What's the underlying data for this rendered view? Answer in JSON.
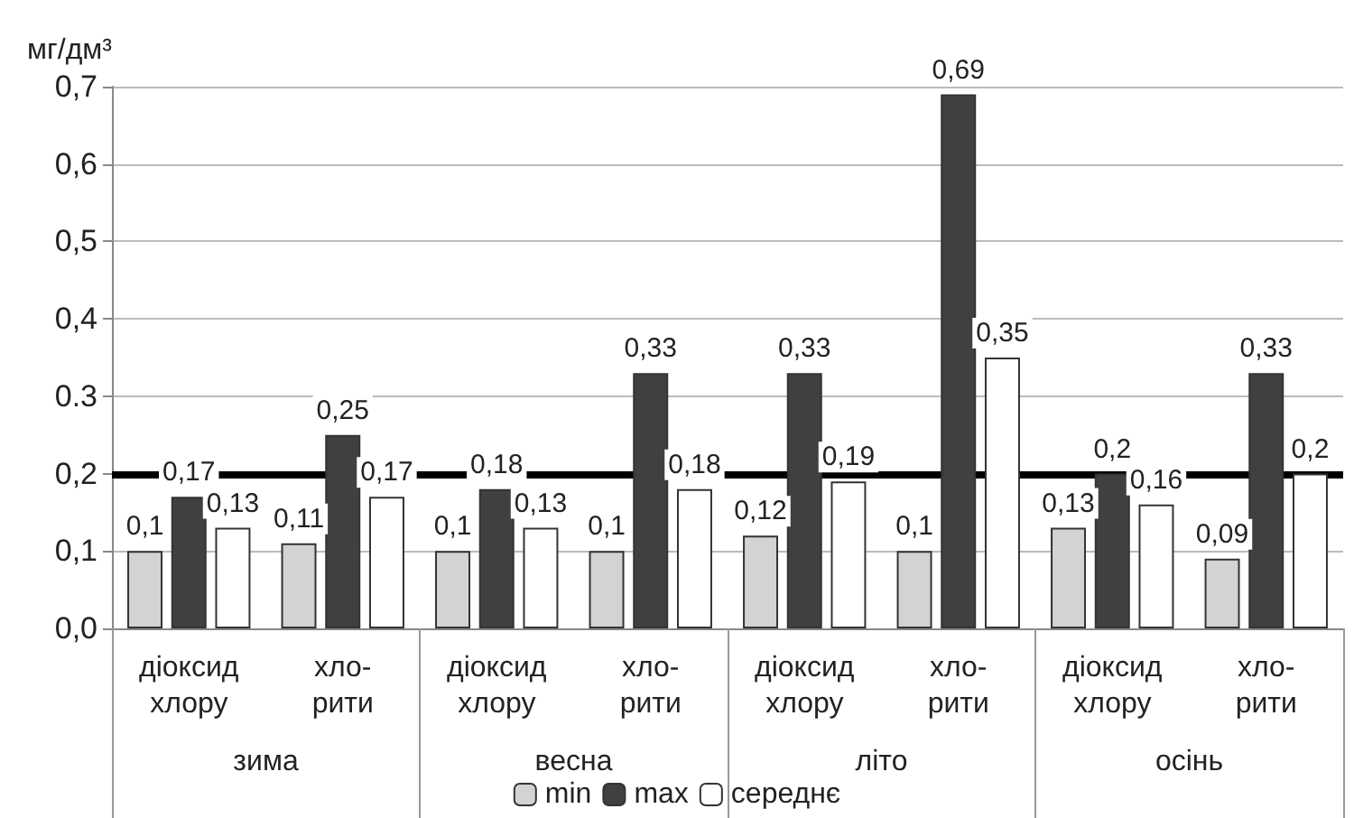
{
  "chart_data": {
    "type": "bar",
    "ylabel": "мг/дм³",
    "categories": [
      "діоксид\nхлору",
      "хло-\nрити",
      "діоксид\nхлору",
      "хло-\nрити",
      "діоксид\nхлору",
      "хло-\nрити",
      "діоксид\nхлору",
      "хло-\nрити"
    ],
    "annotations": [
      "зима",
      "весна",
      "літо",
      "осінь"
    ],
    "series": [
      {
        "name": "min",
        "color": "#d3d3d3",
        "values": [
          0.1,
          0.11,
          0.1,
          0.1,
          0.12,
          0.1,
          0.13,
          0.09
        ],
        "value_labels": [
          "0,1",
          "0,11",
          "0,1",
          "0,1",
          "0,12",
          "0,1",
          "0,13",
          "0,09"
        ]
      },
      {
        "name": "max",
        "color": "#404040",
        "values": [
          0.17,
          0.25,
          0.18,
          0.33,
          0.33,
          0.69,
          0.2,
          0.33
        ],
        "value_labels": [
          "0,17",
          "0,25",
          "0,18",
          "0,33",
          "0,33",
          "0,69",
          "0,2",
          "0,33"
        ]
      },
      {
        "name": "середнє",
        "color": "#ffffff",
        "values": [
          0.13,
          0.17,
          0.13,
          0.18,
          0.19,
          0.35,
          0.16,
          0.2
        ],
        "value_labels": [
          "0,13",
          "0,17",
          "0,13",
          "0,18",
          "0,19",
          "0,35",
          "0,16",
          "0,2"
        ]
      }
    ],
    "ylim": [
      0,
      0.7
    ],
    "yticks": [
      {
        "value": 0,
        "label": "0,0"
      },
      {
        "value": 0.1,
        "label": "0,1"
      },
      {
        "value": 0.2,
        "label": "0,2"
      },
      {
        "value": 0.3,
        "label": "0.3"
      },
      {
        "value": 0.4,
        "label": "0,4"
      },
      {
        "value": 0.5,
        "label": "0,5"
      },
      {
        "value": 0.6,
        "label": "0,6"
      },
      {
        "value": 0.7,
        "label": "0,7"
      }
    ],
    "ref_lines": [
      {
        "axis": "y",
        "value": 0.2,
        "color": "#000000"
      }
    ],
    "grid": "y",
    "legend": "bottom"
  }
}
